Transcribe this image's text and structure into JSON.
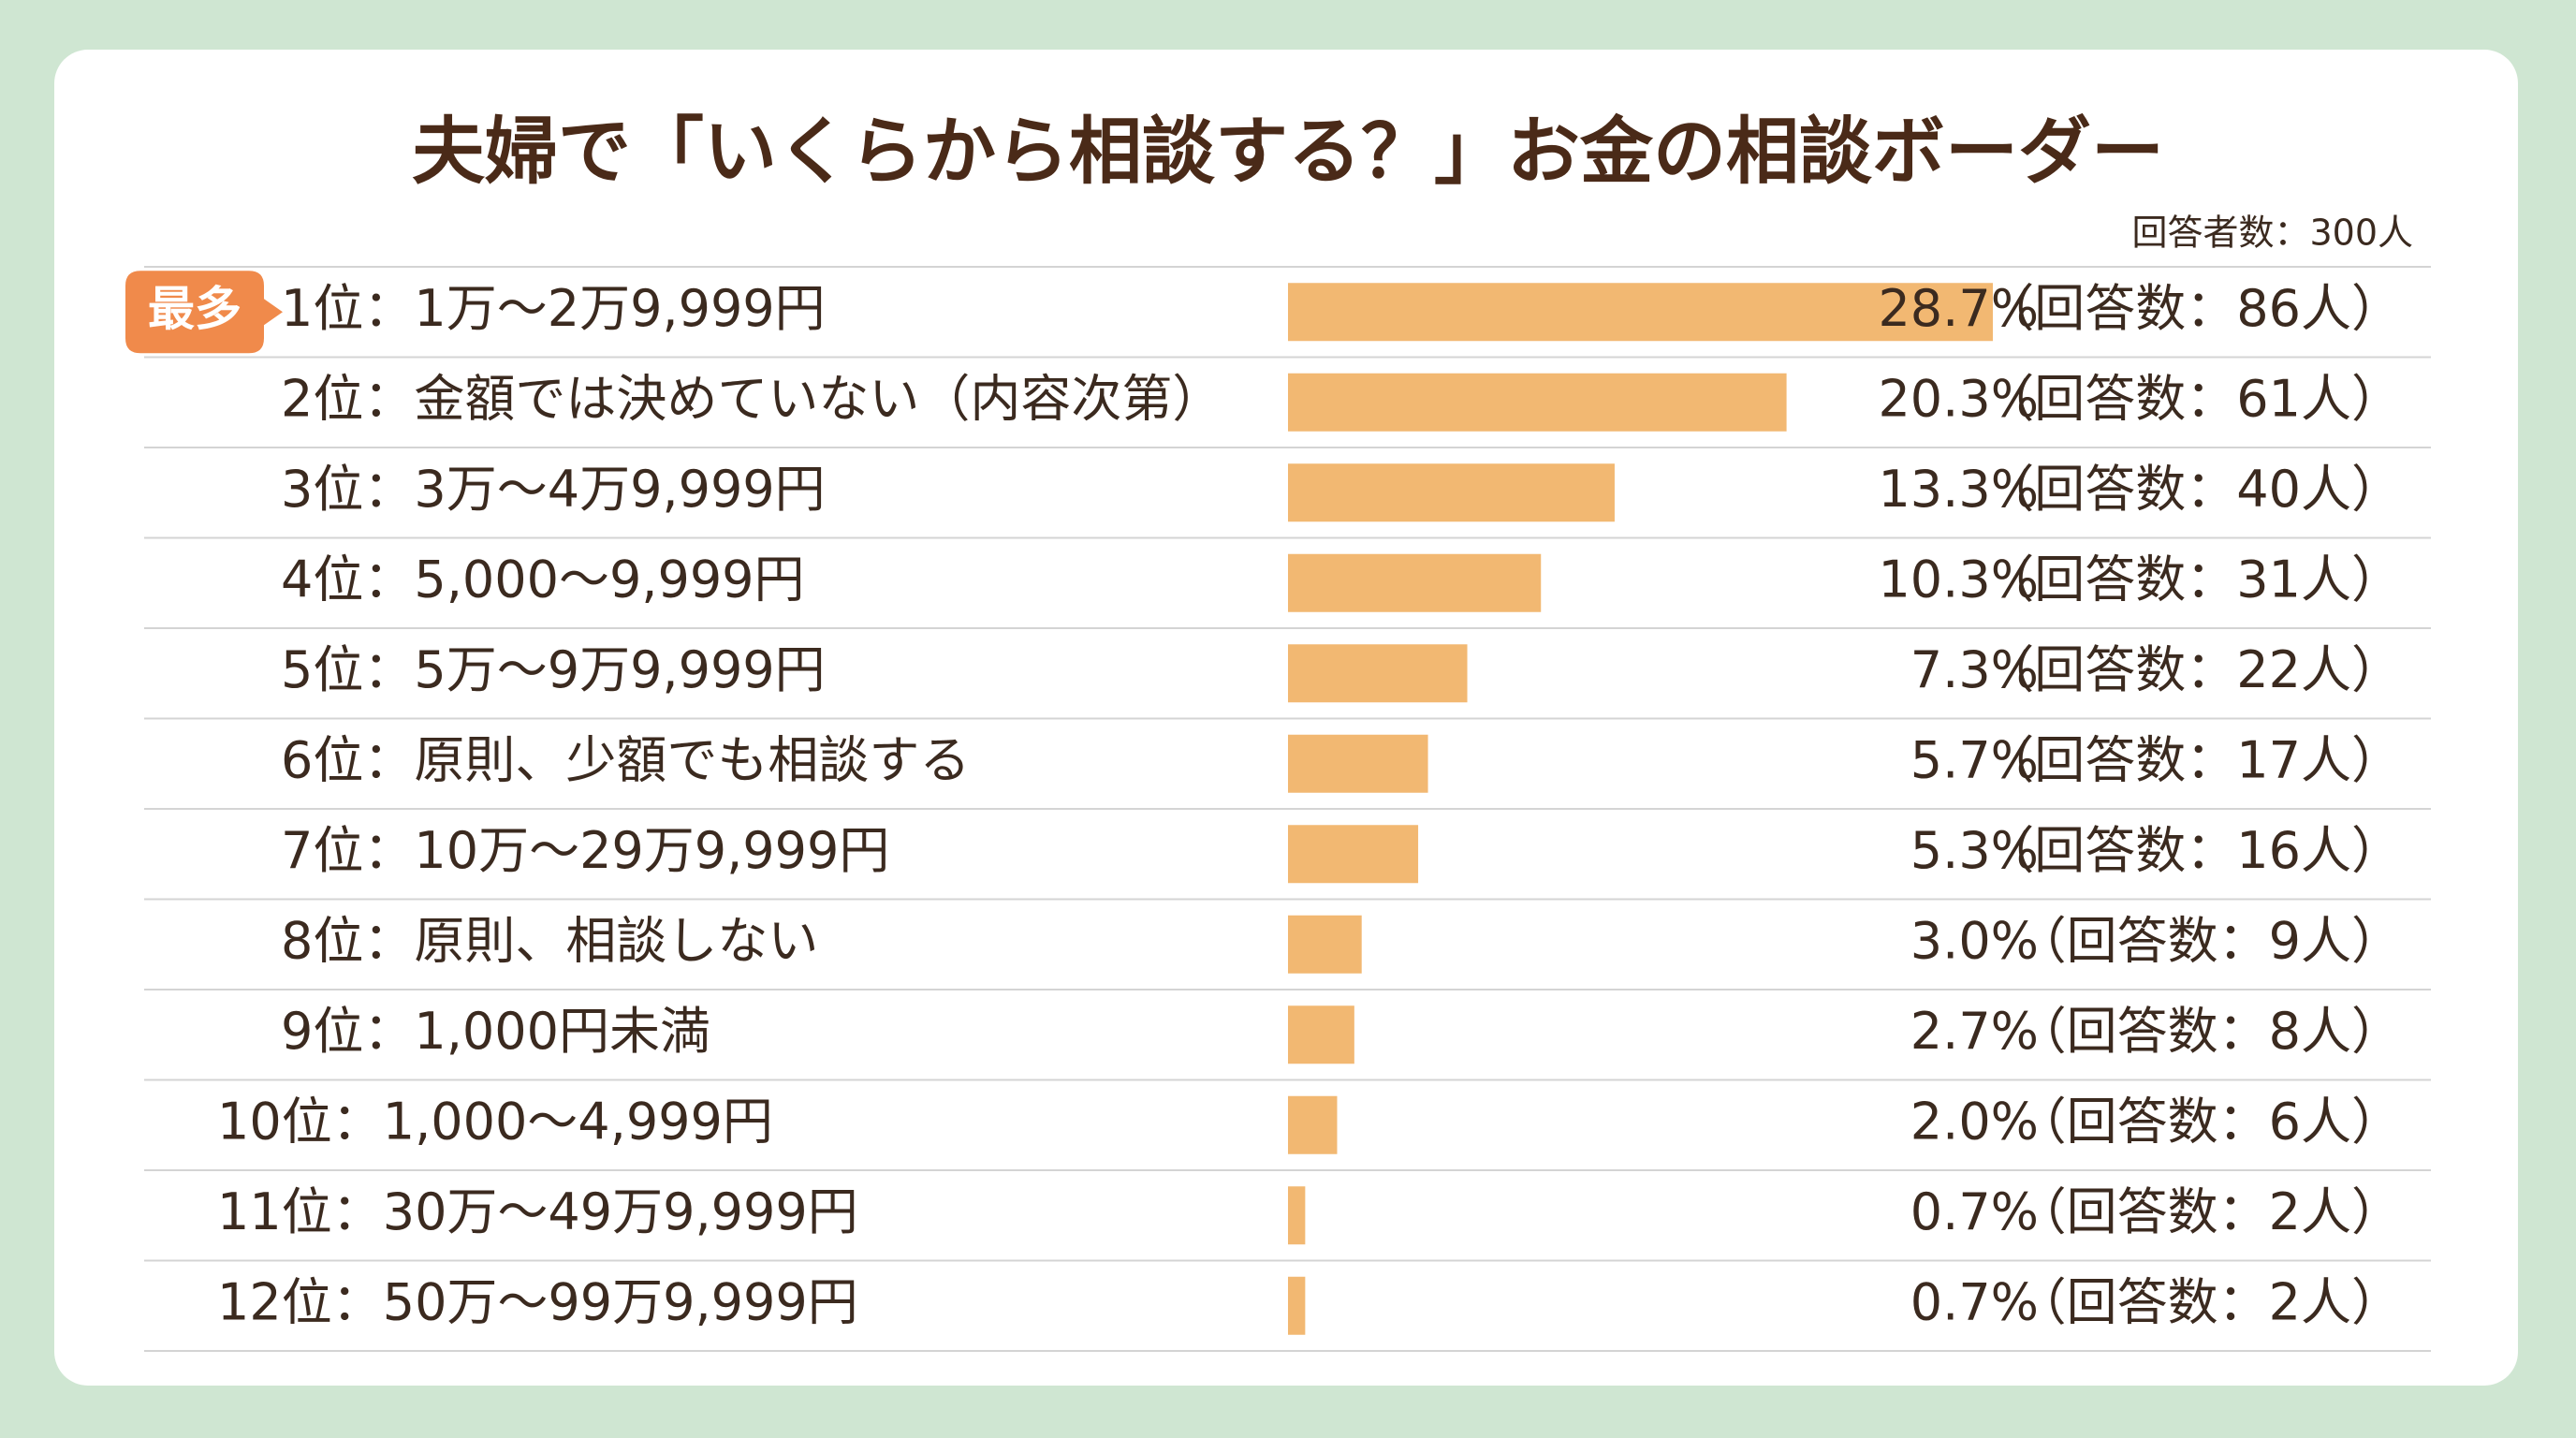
{
  "chart_data": {
    "type": "bar",
    "orientation": "horizontal",
    "title": "夫婦で「いくらから相談する？」お金の相談ボーダー",
    "subtitle": "回答者数：300人",
    "badge": "最多",
    "color": "#f2b872",
    "categories": [
      "1位：1万〜2万9,999円",
      "2位：金額では決めていない（内容次第）",
      "3位：3万〜4万9,999円",
      "4位：5,000〜9,999円",
      "5位：5万〜9万9,999円",
      "6位：原則、少額でも相談する",
      "7位：10万〜29万9,999円",
      "8位：原則、相談しない",
      "9位：1,000円未満",
      "10位：1,000〜4,999円",
      "11位：30万〜49万9,999円",
      "12位：50万〜99万9,999円"
    ],
    "values": [
      28.7,
      20.3,
      13.3,
      10.3,
      7.3,
      5.7,
      5.3,
      3.0,
      2.7,
      2.0,
      0.7,
      0.7
    ],
    "value_labels": [
      "28.7%",
      "20.3%",
      "13.3%",
      "10.3%",
      "7.3%",
      "5.7%",
      "5.3%",
      "3.0%",
      "2.7%",
      "2.0%",
      "0.7%",
      "0.7%"
    ],
    "count_labels": [
      "（回答数：86人）",
      "（回答数：61人）",
      "（回答数：40人）",
      "（回答数：31人）",
      "（回答数：22人）",
      "（回答数：17人）",
      "（回答数：16人）",
      "（回答数：9人）",
      "（回答数：8人）",
      "（回答数：6人）",
      "（回答数：2人）",
      "（回答数：2人）"
    ]
  }
}
